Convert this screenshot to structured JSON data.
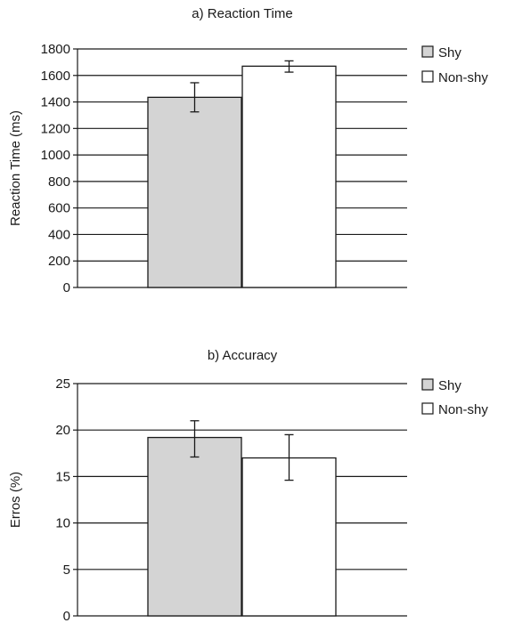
{
  "colors": {
    "shy": "#d4d4d4",
    "non_shy": "#ffffff",
    "stroke": "#1a1a1a",
    "background": "#ffffff"
  },
  "chart_data": [
    {
      "type": "bar",
      "title": "a) Reaction Time",
      "ylabel": "Reaction Time (ms)",
      "xlabel": "",
      "ylim": [
        0,
        1800
      ],
      "yticks": [
        0,
        200,
        400,
        600,
        800,
        1000,
        1200,
        1400,
        1600,
        1800
      ],
      "grid": true,
      "legend": "right",
      "series": [
        {
          "name": "Shy",
          "value": 1435,
          "error_low": 1325,
          "error_high": 1545
        },
        {
          "name": "Non-shy",
          "value": 1670,
          "error_low": 1625,
          "error_high": 1710
        }
      ]
    },
    {
      "type": "bar",
      "title": "b) Accuracy",
      "ylabel": "Erros (%)",
      "xlabel": "",
      "ylim": [
        0,
        25
      ],
      "yticks": [
        0,
        5,
        10,
        15,
        20,
        25
      ],
      "grid": true,
      "legend": "right",
      "series": [
        {
          "name": "Shy",
          "value": 19.2,
          "error_low": 17.1,
          "error_high": 21.0
        },
        {
          "name": "Non-shy",
          "value": 17.0,
          "error_low": 14.6,
          "error_high": 19.5
        }
      ]
    }
  ]
}
